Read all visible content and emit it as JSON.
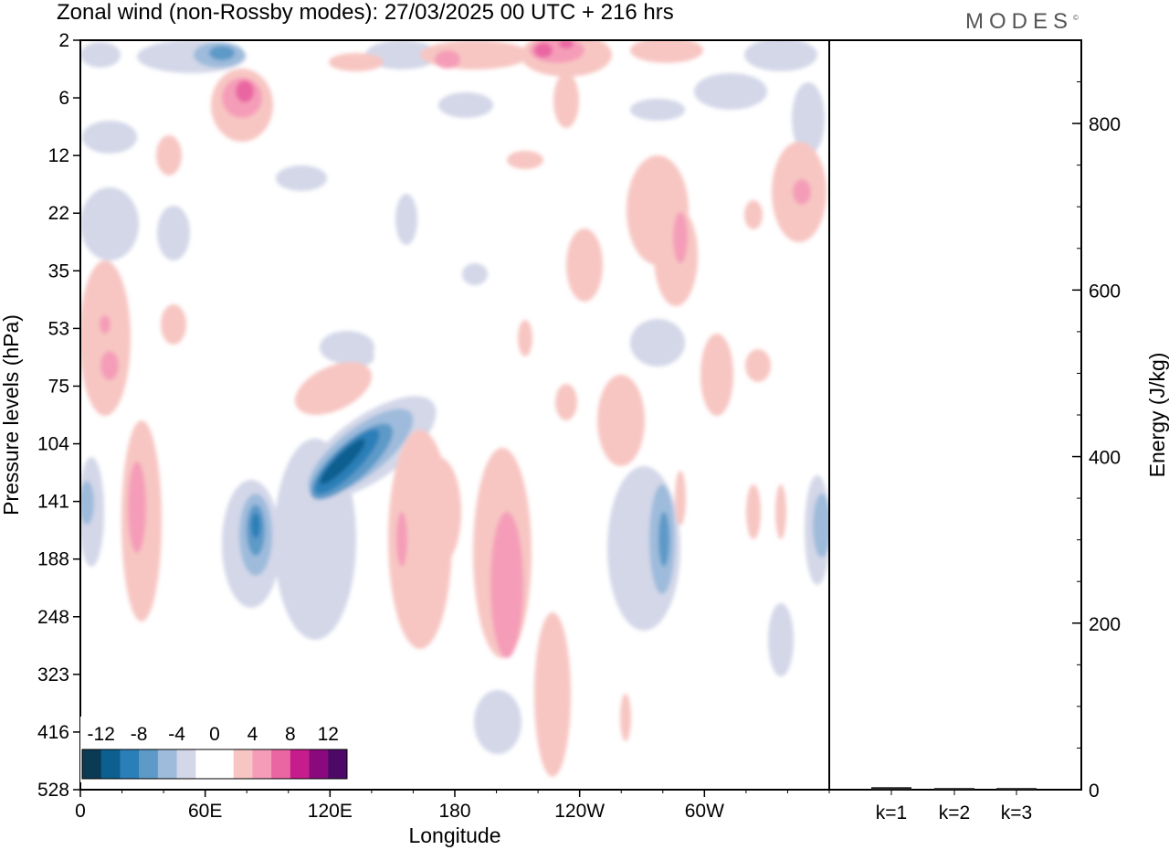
{
  "header": {
    "title": "Zonal wind (non-Rossby modes):  27/03/2025  00 UTC  + 216 hrs",
    "brand": "MODES",
    "brand_mark": "©"
  },
  "colors": {
    "neg": [
      "#0b3a55",
      "#0d5f8f",
      "#2b7fb8",
      "#5d9ac8",
      "#9ebbdc",
      "#d3d7e8"
    ],
    "zero": "#ffffff",
    "pos": [
      "#f7c6c2",
      "#f59db8",
      "#ea66a3",
      "#c51d8c",
      "#8a0a7e",
      "#4c0a66"
    ]
  },
  "chart_data": [
    {
      "type": "heatmap",
      "title": "Zonal wind (non-Rossby modes):  27/03/2025  00 UTC  + 216 hrs",
      "xlabel": "Longitude",
      "ylabel": "Pressure levels (hPa)",
      "x_ticks": [
        "0",
        "60E",
        "120E",
        "180",
        "120W",
        "60W"
      ],
      "y_ticks": [
        "2",
        "6",
        "12",
        "22",
        "35",
        "53",
        "75",
        "104",
        "141",
        "188",
        "248",
        "323",
        "416",
        "528"
      ],
      "colorbar_labels": [
        "-12",
        "-8",
        "-4",
        "0",
        "4",
        "8",
        "12"
      ],
      "colorbar_levels": [
        -14,
        -12,
        -10,
        -8,
        -6,
        -4,
        -2,
        2,
        4,
        6,
        8,
        10,
        12,
        14
      ],
      "features": [
        {
          "lon": 135,
          "level": 104,
          "value": -12
        },
        {
          "lon": 125,
          "level": 141,
          "value": -9
        },
        {
          "lon": 85,
          "level": 160,
          "value": -7
        },
        {
          "lon": 45,
          "level": 6,
          "value": -5
        },
        {
          "lon": 225,
          "level": 160,
          "value": -6
        },
        {
          "lon": 355,
          "level": 160,
          "value": -5
        },
        {
          "lon": 160,
          "level": 416,
          "value": -3
        },
        {
          "lon": 75,
          "level": 6,
          "value": 8
        },
        {
          "lon": 30,
          "level": 141,
          "value": 7
        },
        {
          "lon": 200,
          "level": 220,
          "value": 7
        },
        {
          "lon": 220,
          "level": 2,
          "value": 8
        },
        {
          "lon": 335,
          "level": 22,
          "value": 6
        },
        {
          "lon": 25,
          "level": 75,
          "value": 6
        },
        {
          "lon": 150,
          "level": 188,
          "value": 4
        }
      ]
    },
    {
      "type": "bar",
      "categories": [
        "k=1",
        "k=2",
        "k=3"
      ],
      "values": [
        3,
        2,
        2
      ],
      "ylabel": "Energy (J/kg)",
      "y_ticks": [
        "0",
        "200",
        "400",
        "600",
        "800"
      ],
      "ylim": [
        0,
        900
      ]
    }
  ]
}
